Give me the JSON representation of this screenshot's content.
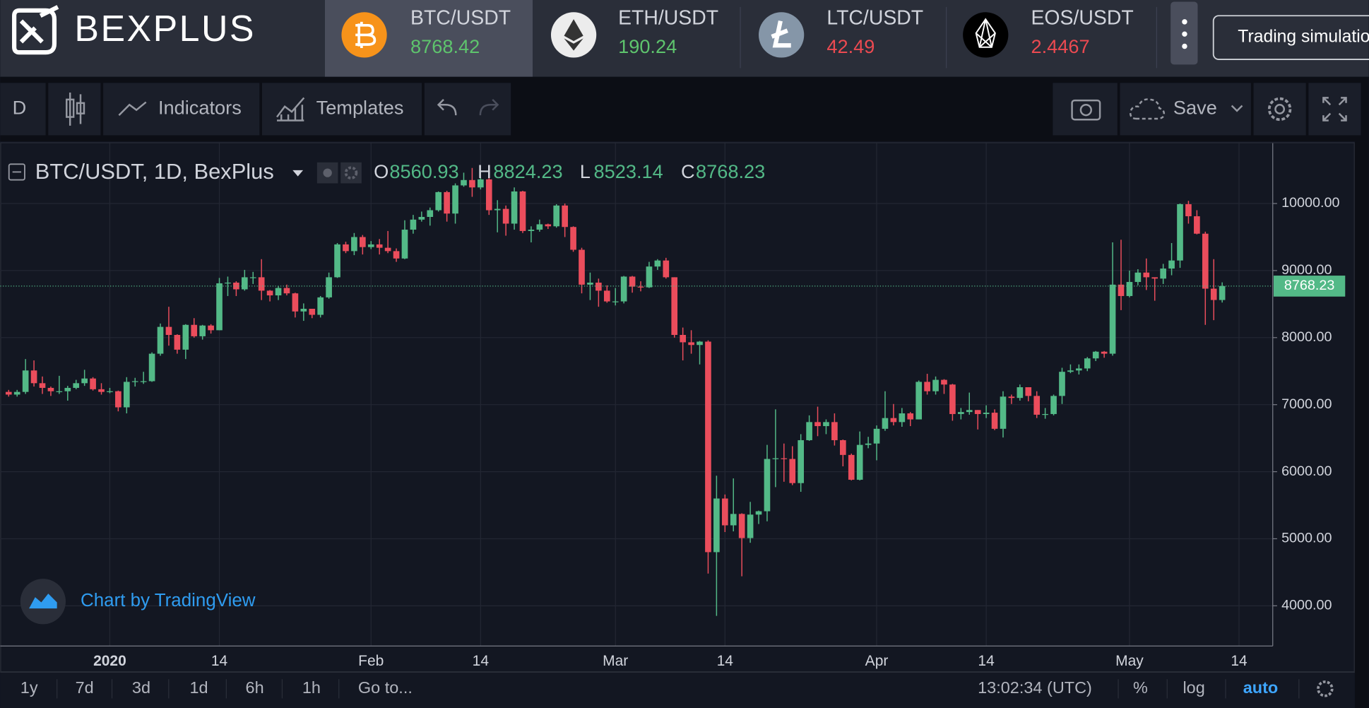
{
  "header": {
    "logo": "BEXPLUS",
    "tickers": [
      {
        "pair": "BTC/USDT",
        "price": "8768.42",
        "color": "#5ec46d"
      },
      {
        "pair": "ETH/USDT",
        "price": "190.24",
        "color": "#5ec46d"
      },
      {
        "pair": "LTC/USDT",
        "price": "42.49",
        "color": "#ec4a51"
      },
      {
        "pair": "EOS/USDT",
        "price": "2.4467",
        "color": "#ec4a51"
      }
    ],
    "button": "Trading simulation"
  },
  "toolbar": {
    "interval": "D",
    "indicators": "Indicators",
    "templates": "Templates",
    "save": "Save"
  },
  "footer": {
    "ranges": [
      "1y",
      "7d",
      "3d",
      "1d",
      "6h",
      "1h"
    ],
    "goto": "Go to...",
    "time": "13:02:34 (UTC)",
    "percent": "%",
    "log": "log",
    "auto": "auto"
  },
  "chart_data": {
    "type": "candlestick",
    "symbol": "BTC/USDT, 1D, BexPlus",
    "ohlc_labels": [
      "O",
      "H",
      "L",
      "C"
    ],
    "watermark": "Chart by TradingView",
    "up_color": "#53b987",
    "down_color": "#eb4d5c",
    "grid": true,
    "xlim": [
      "2019-12-19",
      "2020-05-18"
    ],
    "xticks": [
      {
        "value": "2020-01-01",
        "label": "2020"
      },
      {
        "value": "2020-01-14",
        "label": "14"
      },
      {
        "value": "2020-02-01",
        "label": "Feb"
      },
      {
        "value": "2020-02-14",
        "label": "14"
      },
      {
        "value": "2020-03-01",
        "label": "Mar"
      },
      {
        "value": "2020-03-14",
        "label": "14"
      },
      {
        "value": "2020-04-01",
        "label": "Apr"
      },
      {
        "value": "2020-04-14",
        "label": "14"
      },
      {
        "value": "2020-05-01",
        "label": "May"
      },
      {
        "value": "2020-05-14",
        "label": "14"
      }
    ],
    "ylim": [
      3400,
      10900
    ],
    "yticks": [
      {
        "value": 4000,
        "label": "4000.00"
      },
      {
        "value": 5000,
        "label": "5000.00"
      },
      {
        "value": 6000,
        "label": "6000.00"
      },
      {
        "value": 7000,
        "label": "7000.00"
      },
      {
        "value": 8000,
        "label": "8000.00"
      },
      {
        "value": 9000,
        "label": "9000.00"
      },
      {
        "value": 10000,
        "label": "10000.00"
      }
    ],
    "x": [
      "2019-12-20",
      "2019-12-21",
      "2019-12-22",
      "2019-12-23",
      "2019-12-24",
      "2019-12-25",
      "2019-12-26",
      "2019-12-27",
      "2019-12-28",
      "2019-12-29",
      "2019-12-30",
      "2019-12-31",
      "2020-01-01",
      "2020-01-02",
      "2020-01-03",
      "2020-01-04",
      "2020-01-05",
      "2020-01-06",
      "2020-01-07",
      "2020-01-08",
      "2020-01-09",
      "2020-01-10",
      "2020-01-11",
      "2020-01-12",
      "2020-01-13",
      "2020-01-14",
      "2020-01-15",
      "2020-01-16",
      "2020-01-17",
      "2020-01-18",
      "2020-01-19",
      "2020-01-20",
      "2020-01-21",
      "2020-01-22",
      "2020-01-23",
      "2020-01-24",
      "2020-01-25",
      "2020-01-26",
      "2020-01-27",
      "2020-01-28",
      "2020-01-29",
      "2020-01-30",
      "2020-01-31",
      "2020-02-01",
      "2020-02-02",
      "2020-02-03",
      "2020-02-04",
      "2020-02-05",
      "2020-02-06",
      "2020-02-07",
      "2020-02-08",
      "2020-02-09",
      "2020-02-10",
      "2020-02-11",
      "2020-02-12",
      "2020-02-13",
      "2020-02-14",
      "2020-02-15",
      "2020-02-16",
      "2020-02-17",
      "2020-02-18",
      "2020-02-19",
      "2020-02-20",
      "2020-02-21",
      "2020-02-22",
      "2020-02-23",
      "2020-02-24",
      "2020-02-25",
      "2020-02-26",
      "2020-02-27",
      "2020-02-28",
      "2020-02-29",
      "2020-03-01",
      "2020-03-02",
      "2020-03-03",
      "2020-03-04",
      "2020-03-05",
      "2020-03-06",
      "2020-03-07",
      "2020-03-08",
      "2020-03-09",
      "2020-03-10",
      "2020-03-11",
      "2020-03-12",
      "2020-03-13",
      "2020-03-14",
      "2020-03-15",
      "2020-03-16",
      "2020-03-17",
      "2020-03-18",
      "2020-03-19",
      "2020-03-20",
      "2020-03-21",
      "2020-03-22",
      "2020-03-23",
      "2020-03-24",
      "2020-03-25",
      "2020-03-26",
      "2020-03-27",
      "2020-03-28",
      "2020-03-29",
      "2020-03-30",
      "2020-03-31",
      "2020-04-01",
      "2020-04-02",
      "2020-04-03",
      "2020-04-04",
      "2020-04-05",
      "2020-04-06",
      "2020-04-07",
      "2020-04-08",
      "2020-04-09",
      "2020-04-10",
      "2020-04-11",
      "2020-04-12",
      "2020-04-13",
      "2020-04-14",
      "2020-04-15",
      "2020-04-16",
      "2020-04-17",
      "2020-04-18",
      "2020-04-19",
      "2020-04-20",
      "2020-04-21",
      "2020-04-22",
      "2020-04-23",
      "2020-04-24",
      "2020-04-25",
      "2020-04-26",
      "2020-04-27",
      "2020-04-28",
      "2020-04-29",
      "2020-04-30",
      "2020-05-01",
      "2020-05-02",
      "2020-05-03",
      "2020-05-04",
      "2020-05-05",
      "2020-05-06",
      "2020-05-07",
      "2020-05-08",
      "2020-05-09",
      "2020-05-10",
      "2020-05-11",
      "2020-05-12"
    ],
    "open": [
      7190,
      7150,
      7190,
      7510,
      7320,
      7250,
      7200,
      7200,
      7250,
      7320,
      7390,
      7230,
      7190,
      7200,
      6960,
      7340,
      7350,
      7350,
      7760,
      8160,
      8040,
      7820,
      8190,
      8020,
      8180,
      8110,
      8810,
      8820,
      8720,
      8900,
      8900,
      8700,
      8630,
      8740,
      8660,
      8390,
      8430,
      8340,
      8600,
      8900,
      9390,
      9290,
      9500,
      9350,
      9390,
      9340,
      9290,
      9180,
      9610,
      9760,
      9800,
      9900,
      10170,
      9850,
      10270,
      10350,
      10240,
      10360,
      9900,
      9920,
      9700,
      10180,
      9590,
      9610,
      9690,
      9660,
      9970,
      9650,
      9310,
      8790,
      8820,
      8700,
      8540,
      8540,
      8910,
      8760,
      8750,
      9060,
      9150,
      8900,
      8040,
      7930,
      7890,
      7940,
      4800,
      5600,
      5200,
      5370,
      5010,
      5360,
      5410,
      6190,
      6200,
      6190,
      5830,
      6470,
      6740,
      6680,
      6740,
      6470,
      6250,
      5880,
      6400,
      6420,
      6640,
      6800,
      6740,
      6870,
      6780,
      7340,
      7200,
      7370,
      7300,
      6860,
      6890,
      6920,
      6860,
      6880,
      6640,
      7120,
      7100,
      7260,
      7130,
      6850,
      6860,
      7130,
      7490,
      7510,
      7540,
      7690,
      7790,
      7760,
      8790,
      8620,
      8830,
      8970,
      8900,
      8880,
      9030,
      9150,
      9990,
      9810,
      9550,
      8730,
      8560.93
    ],
    "high": [
      7220,
      7220,
      7680,
      7660,
      7420,
      7270,
      7430,
      7280,
      7370,
      7520,
      7410,
      7320,
      7250,
      7210,
      7410,
      7400,
      7490,
      7780,
      8210,
      8460,
      8050,
      8200,
      8290,
      8190,
      8200,
      8890,
      8910,
      8840,
      9010,
      8980,
      9170,
      8710,
      8770,
      8790,
      8670,
      8510,
      8430,
      8620,
      8970,
      9410,
      9430,
      9560,
      9530,
      9440,
      9470,
      9590,
      9330,
      9750,
      9830,
      9880,
      9940,
      10180,
      10190,
      10300,
      10460,
      10530,
      10390,
      10380,
      10050,
      9970,
      10240,
      10190,
      9660,
      9760,
      9700,
      9990,
      10000,
      9660,
      9340,
      8970,
      8880,
      8780,
      8740,
      8920,
      8920,
      8840,
      9130,
      9170,
      9190,
      8900,
      8150,
      8110,
      7950,
      7960,
      5940,
      5660,
      5900,
      5380,
      5550,
      5420,
      6400,
      6930,
      6420,
      6380,
      6560,
      6840,
      6970,
      6780,
      6870,
      6480,
      6270,
      6600,
      6520,
      6690,
      7200,
      7010,
      6950,
      6890,
      7360,
      7460,
      7420,
      7380,
      7310,
      6950,
      7180,
      6920,
      6990,
      6930,
      7200,
      7150,
      7300,
      7260,
      7200,
      6950,
      7150,
      7550,
      7600,
      7600,
      7710,
      7800,
      7800,
      9420,
      9460,
      9000,
      9020,
      9180,
      8900,
      9100,
      9410,
      10000,
      10040,
      9900,
      9580,
      9170,
      8824.23
    ],
    "low": [
      7120,
      7120,
      7160,
      7270,
      7160,
      7130,
      7160,
      7060,
      7230,
      7280,
      7210,
      7150,
      7170,
      6900,
      6870,
      7270,
      7310,
      7340,
      7730,
      7880,
      7760,
      7680,
      8000,
      7970,
      8060,
      8110,
      8620,
      8620,
      8700,
      8800,
      8560,
      8540,
      8560,
      8630,
      8300,
      8250,
      8290,
      8300,
      8580,
      8890,
      9260,
      9230,
      9240,
      9320,
      9240,
      9260,
      9130,
      9170,
      9550,
      9730,
      9670,
      9880,
      9730,
      9700,
      10250,
      10100,
      10210,
      9830,
      9570,
      9520,
      9610,
      9560,
      9420,
      9580,
      9620,
      9640,
      9500,
      9280,
      8660,
      8560,
      8460,
      8520,
      8480,
      8510,
      8670,
      8690,
      8740,
      9010,
      8880,
      8000,
      7660,
      7760,
      7600,
      4480,
      3850,
      5100,
      5110,
      4440,
      4940,
      5220,
      5260,
      5770,
      5850,
      5800,
      5700,
      6460,
      6530,
      6560,
      6390,
      6080,
      5870,
      5870,
      6350,
      6170,
      6610,
      6690,
      6670,
      6680,
      6780,
      7150,
      7150,
      7160,
      6760,
      6780,
      6850,
      6630,
      6800,
      6620,
      6510,
      7010,
      7060,
      7050,
      6800,
      6790,
      6840,
      7010,
      7470,
      7450,
      7500,
      7650,
      7700,
      7730,
      8410,
      8600,
      8780,
      8710,
      8550,
      8800,
      8930,
      9040,
      9700,
      9540,
      8190,
      8260,
      8523.14
    ],
    "close": [
      7150,
      7190,
      7510,
      7320,
      7250,
      7200,
      7200,
      7250,
      7320,
      7390,
      7230,
      7190,
      7200,
      6960,
      7340,
      7350,
      7350,
      7760,
      8160,
      8040,
      7820,
      8190,
      8020,
      8180,
      8110,
      8810,
      8820,
      8720,
      8900,
      8900,
      8700,
      8630,
      8740,
      8660,
      8390,
      8430,
      8340,
      8600,
      8900,
      9390,
      9290,
      9500,
      9350,
      9390,
      9340,
      9290,
      9180,
      9610,
      9760,
      9800,
      9900,
      10170,
      9850,
      10270,
      10350,
      10240,
      10360,
      9900,
      9920,
      9700,
      10180,
      9590,
      9610,
      9690,
      9660,
      9970,
      9650,
      9310,
      8790,
      8820,
      8700,
      8540,
      8540,
      8910,
      8760,
      8750,
      9060,
      9150,
      8900,
      8040,
      7930,
      7890,
      7940,
      4800,
      5600,
      5200,
      5370,
      5010,
      5360,
      5410,
      6190,
      6200,
      6190,
      5830,
      6470,
      6740,
      6680,
      6740,
      6470,
      6250,
      5880,
      6400,
      6420,
      6640,
      6800,
      6740,
      6870,
      6780,
      7340,
      7200,
      7370,
      7300,
      6860,
      6890,
      6920,
      6860,
      6880,
      6640,
      7120,
      7100,
      7260,
      7130,
      6850,
      6860,
      7130,
      7490,
      7510,
      7540,
      7690,
      7790,
      7760,
      8790,
      8620,
      8830,
      8970,
      8900,
      8880,
      9030,
      9150,
      9990,
      9810,
      9550,
      8730,
      8560.93,
      8768.23
    ]
  }
}
